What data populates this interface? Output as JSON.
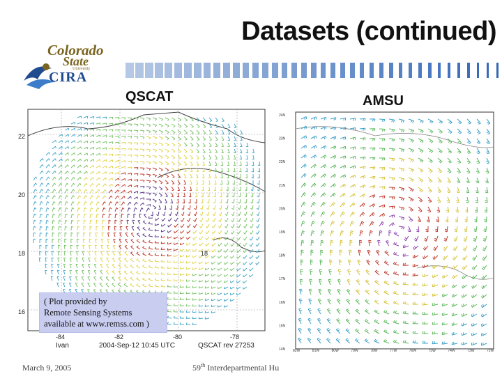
{
  "slide": {
    "title": "Datasets (continued)",
    "left_label": "QSCAT",
    "right_label": "AMSU"
  },
  "logo": {
    "line1": "Colorado",
    "line2": "State",
    "line3": "University",
    "line4": "CIRA",
    "icon": "csu-cira-logo"
  },
  "qscat_plot": {
    "y_ticks": [
      "22",
      "20",
      "18",
      "16"
    ],
    "x_ticks": [
      "-84",
      "-82",
      "-80",
      "-78"
    ],
    "inner_label": "18",
    "storm_name": "Ivan",
    "timestamp": "2004-Sep-12  10:45 UTC",
    "rev": "QSCAT rev 27253"
  },
  "amsu_plot": {
    "lat_ticks": [
      "24N",
      "23N",
      "22N",
      "21N",
      "20N",
      "19N",
      "18N",
      "17N",
      "16N",
      "15N",
      "14N"
    ],
    "lon_ticks": [
      "82W",
      "81W",
      "80W",
      "79W",
      "78W",
      "77W",
      "76W",
      "75W",
      "74W",
      "73W",
      "72W"
    ]
  },
  "caption": {
    "line1": "( Plot provided by",
    "line2": "Remote Sensing Systems",
    "line3": "available at www.remss.com )"
  },
  "footer": {
    "date": "March 9, 2005",
    "event_sup": "th",
    "event_num": "59",
    "event_text": "Interdepartmental Hu"
  },
  "colors": {
    "stripe": "#2c62b4",
    "caption_bg": "#c9cdf0"
  }
}
